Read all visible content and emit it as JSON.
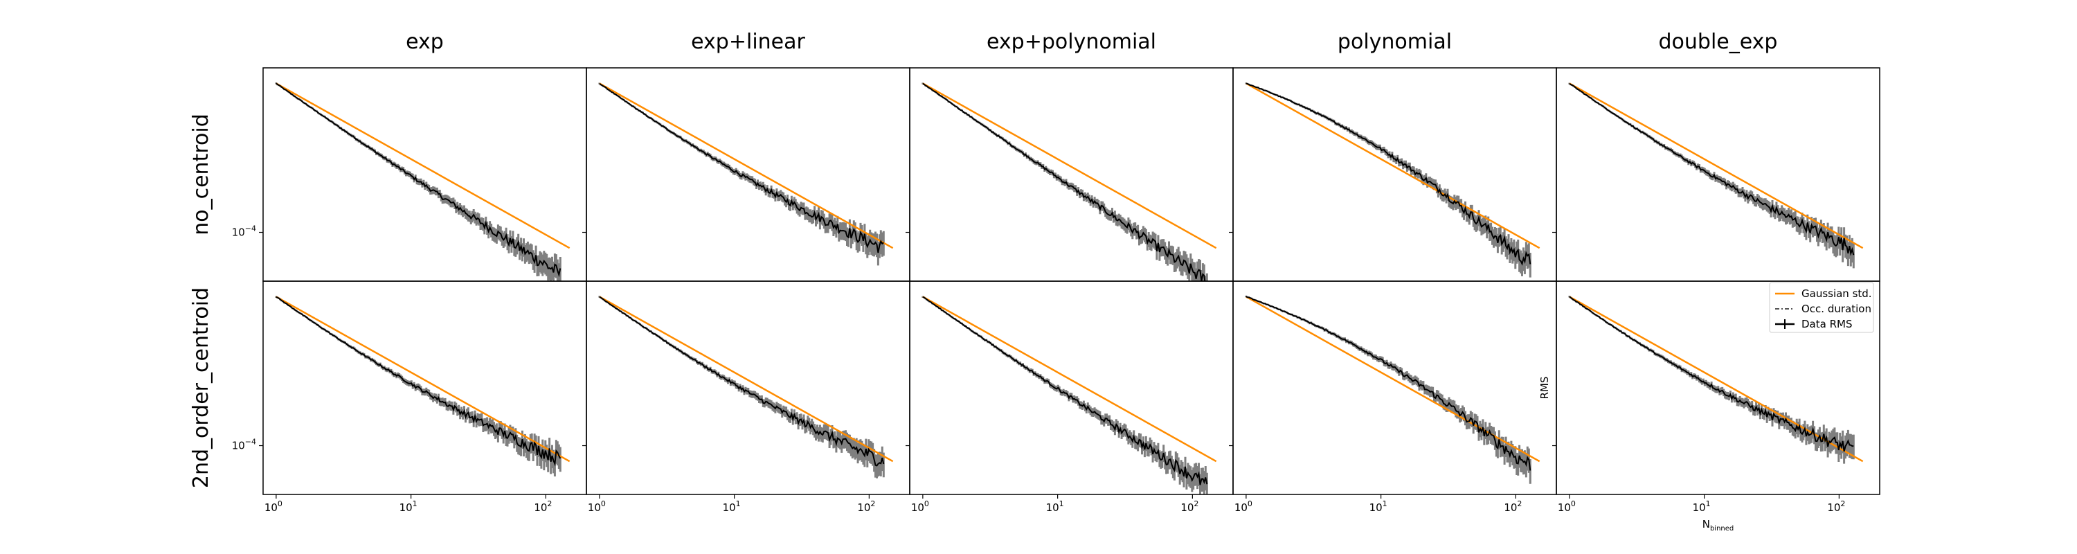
{
  "chart_data": {
    "type": "line",
    "layout": "grid",
    "x_scale": "log",
    "y_scale": "log",
    "xlim": [
      0.8,
      200
    ],
    "ylim": [
      5.5e-05,
      0.00075
    ],
    "columns": [
      "exp",
      "exp+linear",
      "exp+polynomial",
      "polynomial",
      "double_exp"
    ],
    "rows": [
      "no_centroid",
      "2nd_order_centroid"
    ],
    "x_ticks": [
      {
        "value": 1,
        "base": "10",
        "exp": "0"
      },
      {
        "value": 10,
        "base": "10",
        "exp": "1"
      },
      {
        "value": 100,
        "base": "10",
        "exp": "2"
      }
    ],
    "y_ticks": [
      {
        "value": 0.0001,
        "base": "10",
        "exp": "−4"
      }
    ],
    "xlabel": {
      "main": "N",
      "sub": "binned"
    },
    "ylabel": "RMS",
    "legend": {
      "placement": "top-right",
      "entries": [
        "Gaussian std.",
        "Occ. duration",
        "Data RMS"
      ]
    },
    "colors": {
      "model": "#ff8c00",
      "data": "#000000",
      "error": "#7f7f7f"
    },
    "series": [
      {
        "name": "Data RMS",
        "x_range": [
          1,
          128
        ],
        "y_at_x1": 0.00062,
        "slope": -0.5
      },
      {
        "name": "Gaussian std.",
        "x_range": [
          1,
          150
        ],
        "y_at_x1": 0.00062,
        "slope": -0.5
      }
    ],
    "panels": [
      [
        {
          "model_end_rms": 8.25e-05,
          "data_end_rms": 6e-05
        },
        {
          "model_end_rms": 8.25e-05,
          "data_end_rms": 8.25e-05
        },
        {
          "model_end_rms": 8.25e-05,
          "data_end_rms": 5.5e-05
        },
        {
          "model_end_rms": 8.25e-05,
          "data_end_rms": 7e-05
        },
        {
          "model_end_rms": 8.25e-05,
          "data_end_rms": 8.25e-05
        }
      ],
      [
        {
          "model_end_rms": 8.25e-05,
          "data_end_rms": 8.5e-05
        },
        {
          "model_end_rms": 8.25e-05,
          "data_end_rms": 8.25e-05
        },
        {
          "model_end_rms": 8.25e-05,
          "data_end_rms": 6.2e-05
        },
        {
          "model_end_rms": 8.25e-05,
          "data_end_rms": 8e-05
        },
        {
          "model_end_rms": 8.25e-05,
          "data_end_rms": 9.5e-05
        }
      ]
    ]
  }
}
